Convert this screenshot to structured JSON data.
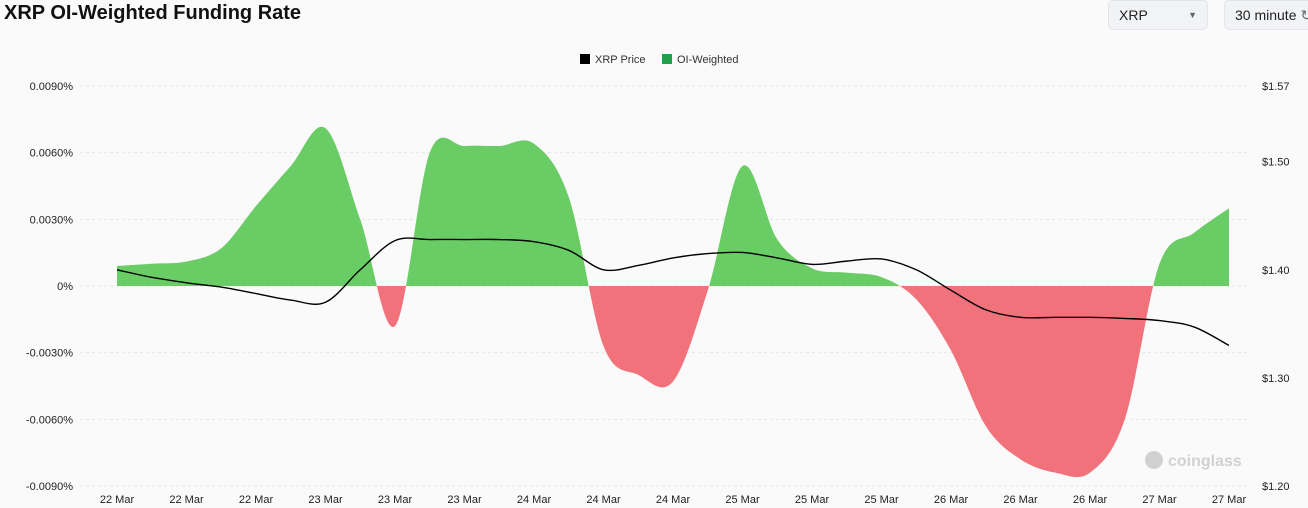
{
  "header": {
    "title": "XRP OI-Weighted Funding Rate",
    "coin_select": "XRP",
    "interval_select": "30 minute"
  },
  "watermark": "coinglass",
  "chart_data": {
    "type": "area",
    "title": "XRP OI-Weighted Funding Rate",
    "legend": {
      "position": "top-center",
      "items": [
        {
          "name": "XRP Price",
          "color": "#000000"
        },
        {
          "name": "OI-Weighted",
          "color": "#21a04b"
        }
      ]
    },
    "x_tick_labels": [
      "22 Mar",
      "22 Mar",
      "22 Mar",
      "23 Mar",
      "23 Mar",
      "23 Mar",
      "24 Mar",
      "24 Mar",
      "24 Mar",
      "25 Mar",
      "25 Mar",
      "25 Mar",
      "26 Mar",
      "26 Mar",
      "26 Mar",
      "27 Mar",
      "27 Mar"
    ],
    "y_left": {
      "ticks": [
        "0.0090%",
        "0.0060%",
        "0.0030%",
        "0%",
        "-0.0030%",
        "-0.0060%",
        "-0.0090%"
      ],
      "range": [
        -0.009,
        0.009
      ]
    },
    "y_right": {
      "ticks": [
        "$1.57",
        "$1.50",
        "$1.40",
        "$1.30",
        "$1.20"
      ],
      "tick_values": [
        1.57,
        1.5,
        1.4,
        1.3,
        1.2
      ],
      "range": [
        1.2,
        1.57
      ]
    },
    "grid": true,
    "positive_color": "#6acc64",
    "negative_color": "#f2727c",
    "series": [
      {
        "name": "OI-Weighted",
        "axis": "left",
        "unit": "%",
        "values": [
          0.0009,
          0.001,
          0.0011,
          0.0017,
          0.0036,
          0.0054,
          0.0071,
          0.003,
          -0.0018,
          0.006,
          0.0063,
          0.0063,
          0.0064,
          0.004,
          -0.0027,
          -0.004,
          -0.0043,
          -0.0002,
          0.0054,
          0.0021,
          0.0008,
          0.0006,
          0.0004,
          -0.0006,
          -0.0029,
          -0.0063,
          -0.0078,
          -0.0084,
          -0.0084,
          -0.006,
          0.001,
          0.0024,
          0.0035
        ]
      },
      {
        "name": "XRP Price",
        "axis": "right",
        "unit": "$",
        "values": [
          1.4,
          1.393,
          1.388,
          1.384,
          1.378,
          1.372,
          1.37,
          1.4,
          1.427,
          1.428,
          1.428,
          1.428,
          1.426,
          1.418,
          1.4,
          1.404,
          1.411,
          1.415,
          1.416,
          1.411,
          1.405,
          1.408,
          1.41,
          1.4,
          1.381,
          1.363,
          1.356,
          1.356,
          1.356,
          1.355,
          1.353,
          1.347,
          1.33
        ]
      }
    ]
  }
}
